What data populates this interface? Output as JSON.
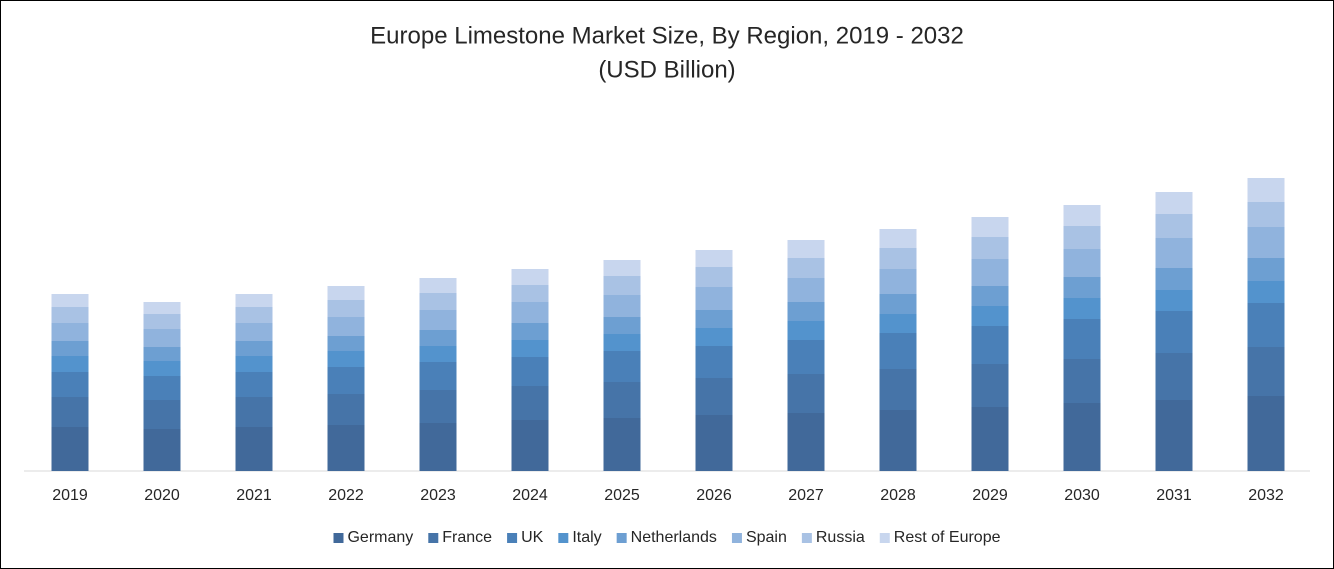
{
  "chart_data": {
    "type": "stacked-bar",
    "title": "Europe Limestone Market Size, By Region, 2019 - 2032",
    "subtitle": "(USD Billion)",
    "categories": [
      "2019",
      "2020",
      "2021",
      "2022",
      "2023",
      "2024",
      "2025",
      "2026",
      "2027",
      "2028",
      "2029",
      "2030",
      "2031",
      "2032"
    ],
    "series": [
      {
        "name": "Germany",
        "color": "#41699a",
        "values": [
          44,
          42,
          44,
          46,
          48,
          51,
          53,
          56,
          58,
          61,
          64,
          68,
          71,
          75
        ]
      },
      {
        "name": "France",
        "color": "#4674a8",
        "values": [
          30,
          29,
          30,
          31,
          33,
          34,
          36,
          37,
          39,
          41,
          43,
          44,
          47,
          49
        ]
      },
      {
        "name": "UK",
        "color": "#4a80b8",
        "values": [
          25,
          24,
          25,
          27,
          28,
          29,
          31,
          32,
          34,
          36,
          38,
          40,
          42,
          44
        ]
      },
      {
        "name": "Italy",
        "color": "#5393cd",
        "values": [
          16,
          15,
          16,
          16,
          16,
          17,
          17,
          18,
          19,
          19,
          20,
          21,
          21,
          22
        ]
      },
      {
        "name": "Netherlands",
        "color": "#6d9fd2",
        "values": [
          15,
          14,
          15,
          15,
          16,
          17,
          17,
          18,
          19,
          20,
          20,
          21,
          22,
          23
        ]
      },
      {
        "name": "Spain",
        "color": "#90b3dd",
        "values": [
          18,
          18,
          18,
          19,
          20,
          21,
          22,
          23,
          24,
          25,
          27,
          28,
          30,
          31
        ]
      },
      {
        "name": "Russia",
        "color": "#a9c2e4",
        "values": [
          16,
          15,
          16,
          17,
          17,
          17,
          19,
          20,
          20,
          21,
          22,
          23,
          24,
          25
        ]
      },
      {
        "name": "Rest of Europe",
        "color": "#c8d6ee",
        "values": [
          13,
          12,
          13,
          14,
          15,
          16,
          16,
          17,
          18,
          19,
          20,
          21,
          22,
          24
        ]
      }
    ],
    "ylim": [
      0,
      370
    ]
  }
}
